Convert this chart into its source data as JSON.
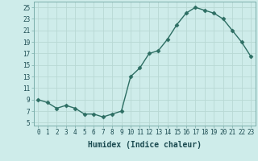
{
  "x": [
    0,
    1,
    2,
    3,
    4,
    5,
    6,
    7,
    8,
    9,
    10,
    11,
    12,
    13,
    14,
    15,
    16,
    17,
    18,
    19,
    20,
    21,
    22,
    23
  ],
  "y": [
    9,
    8.5,
    7.5,
    8,
    7.5,
    6.5,
    6.5,
    6,
    6.5,
    7,
    13,
    14.5,
    17,
    17.5,
    19.5,
    22,
    24,
    25,
    24.5,
    24,
    23,
    21,
    19,
    16.5
  ],
  "line_color": "#2d6e63",
  "marker": "D",
  "markersize": 2.5,
  "linewidth": 1.0,
  "bg_color": "#ceecea",
  "grid_color": "#b8d8d4",
  "xlabel": "Humidex (Indice chaleur)",
  "xlim": [
    -0.5,
    23.5
  ],
  "ylim": [
    4.5,
    26
  ],
  "yticks": [
    5,
    7,
    9,
    11,
    13,
    15,
    17,
    19,
    21,
    23,
    25
  ],
  "xticks": [
    0,
    1,
    2,
    3,
    4,
    5,
    6,
    7,
    8,
    9,
    10,
    11,
    12,
    13,
    14,
    15,
    16,
    17,
    18,
    19,
    20,
    21,
    22,
    23
  ],
  "xlabel_fontsize": 7,
  "tick_fontsize": 5.5,
  "tick_color": "#1a4a50",
  "label_color": "#1a4a50"
}
